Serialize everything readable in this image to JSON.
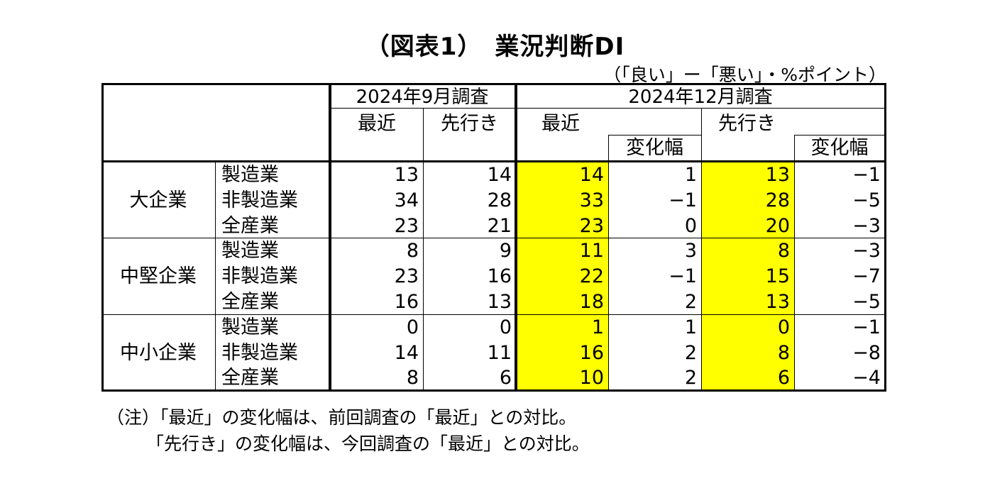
{
  "title": "（図表1）　業況判断DI",
  "unit": "（「良い」ー「悪い」・%ポイント）",
  "headers": {
    "sep_survey": "2024年9月調査",
    "dec_survey": "2024年12月調査",
    "recent": "最近",
    "forecast": "先行き",
    "change": "変化幅"
  },
  "groups": [
    {
      "name": "大企業",
      "rows": [
        {
          "industry": "製造業",
          "sep_recent": "13",
          "sep_forecast": "14",
          "dec_recent": "14",
          "dec_recent_change": "1",
          "dec_forecast": "13",
          "dec_forecast_change": "−1"
        },
        {
          "industry": "非製造業",
          "sep_recent": "34",
          "sep_forecast": "28",
          "dec_recent": "33",
          "dec_recent_change": "−1",
          "dec_forecast": "28",
          "dec_forecast_change": "−5"
        },
        {
          "industry": "全産業",
          "sep_recent": "23",
          "sep_forecast": "21",
          "dec_recent": "23",
          "dec_recent_change": "0",
          "dec_forecast": "20",
          "dec_forecast_change": "−3"
        }
      ]
    },
    {
      "name": "中堅企業",
      "rows": [
        {
          "industry": "製造業",
          "sep_recent": "8",
          "sep_forecast": "9",
          "dec_recent": "11",
          "dec_recent_change": "3",
          "dec_forecast": "8",
          "dec_forecast_change": "−3"
        },
        {
          "industry": "非製造業",
          "sep_recent": "23",
          "sep_forecast": "16",
          "dec_recent": "22",
          "dec_recent_change": "−1",
          "dec_forecast": "15",
          "dec_forecast_change": "−7"
        },
        {
          "industry": "全産業",
          "sep_recent": "16",
          "sep_forecast": "13",
          "dec_recent": "18",
          "dec_recent_change": "2",
          "dec_forecast": "13",
          "dec_forecast_change": "−5"
        }
      ]
    },
    {
      "name": "中小企業",
      "rows": [
        {
          "industry": "製造業",
          "sep_recent": "0",
          "sep_forecast": "0",
          "dec_recent": "1",
          "dec_recent_change": "1",
          "dec_forecast": "0",
          "dec_forecast_change": "−1"
        },
        {
          "industry": "非製造業",
          "sep_recent": "14",
          "sep_forecast": "11",
          "dec_recent": "16",
          "dec_recent_change": "2",
          "dec_forecast": "8",
          "dec_forecast_change": "−8"
        },
        {
          "industry": "全産業",
          "sep_recent": "8",
          "sep_forecast": "6",
          "dec_recent": "10",
          "dec_recent_change": "2",
          "dec_forecast": "6",
          "dec_forecast_change": "−4"
        }
      ]
    }
  ],
  "notes": [
    "（注）「最近」の変化幅は、前回調査の「最近」との対比。",
    "「先行き」の変化幅は、今回調査の「最近」との対比。"
  ],
  "colors": {
    "highlight": "#ffff00",
    "border": "#000000"
  }
}
